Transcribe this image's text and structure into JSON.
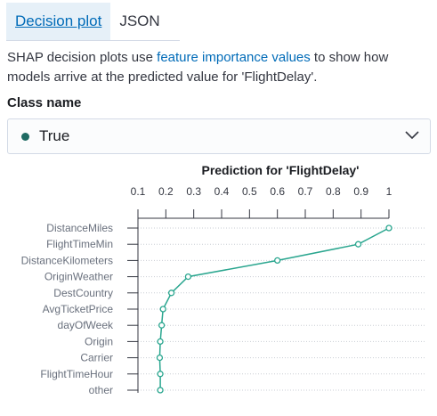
{
  "tabs": [
    {
      "label": "Decision plot",
      "active": true
    },
    {
      "label": "JSON",
      "active": false
    }
  ],
  "description": {
    "before": "SHAP decision plots use ",
    "link": "feature importance values",
    "after": " to show how models arrive at the predicted value for 'FlightDelay'."
  },
  "class_name": {
    "label": "Class name",
    "selected": "True",
    "dot_color": "#1f6b63",
    "icon": "chevron-down-icon"
  },
  "colors": {
    "accent": "#006bb8",
    "series": "#2aa68f"
  },
  "chart_data": {
    "type": "line",
    "title": "Prediction for 'FlightDelay'",
    "xlim": [
      0.1,
      1
    ],
    "xticks": [
      "0.1",
      "0.2",
      "0.3",
      "0.4",
      "0.5",
      "0.6",
      "0.7",
      "0.8",
      "0.9",
      "1"
    ],
    "categories": [
      "DistanceMiles",
      "FlightTimeMin",
      "DistanceKilometers",
      "OriginWeather",
      "DestCountry",
      "AvgTicketPrice",
      "dayOfWeek",
      "Origin",
      "Carrier",
      "FlightTimeHour",
      "other"
    ],
    "values": [
      1.0,
      0.89,
      0.6,
      0.28,
      0.22,
      0.19,
      0.185,
      0.18,
      0.178,
      0.18,
      0.18
    ],
    "grid": true
  }
}
